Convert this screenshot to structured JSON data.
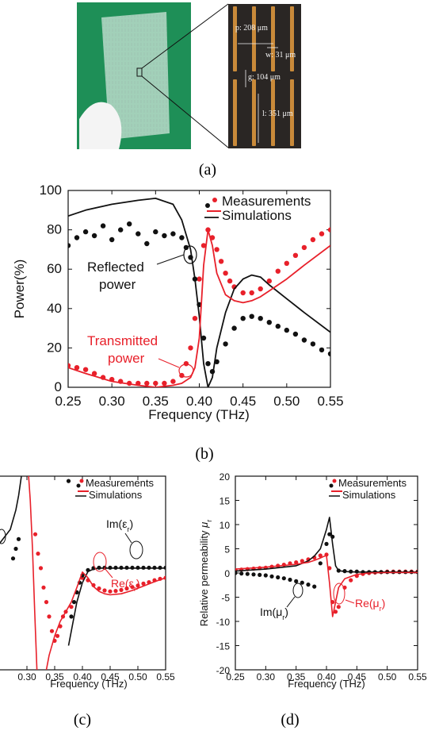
{
  "captions": {
    "a": "(a)",
    "b": "(b)",
    "c": "(c)",
    "d": "(d)"
  },
  "photo": {
    "labels": [
      "p: 208 μm",
      "w: 31 μm",
      "g: 104 μm",
      "l: 351 μm"
    ]
  },
  "colors": {
    "measurement_red": "#e8202a",
    "measurement_black": "#111111",
    "simulation_red": "#e8202a",
    "simulation_black": "#111111",
    "photo_bg": "#1e8f57",
    "strip": "#c98a3a"
  },
  "chart_data": [
    {
      "type": "scatter",
      "panel": "b",
      "xlabel": "Frequency (THz)",
      "ylabel": "Power(%)",
      "xlim": [
        0.25,
        0.55
      ],
      "ylim": [
        0,
        100
      ],
      "xticks": [
        "0.25",
        "0.30",
        "0.35",
        "0.40",
        "0.45",
        "0.50",
        "0.55"
      ],
      "yticks": [
        "0",
        "20",
        "40",
        "60",
        "80",
        "100"
      ],
      "legend": {
        "position": "top-right",
        "entries": [
          "Measurements",
          "Simulations"
        ]
      },
      "annotations": {
        "reflected": [
          "Reflected",
          "power"
        ],
        "transmitted": [
          "Transmitted",
          "power"
        ]
      },
      "series": [
        {
          "kind": "measurement",
          "color": "red",
          "x": [
            0.25,
            0.26,
            0.27,
            0.28,
            0.29,
            0.3,
            0.31,
            0.32,
            0.33,
            0.34,
            0.35,
            0.36,
            0.37,
            0.38,
            0.385,
            0.39,
            0.395,
            0.4,
            0.405,
            0.41,
            0.415,
            0.42,
            0.425,
            0.43,
            0.435,
            0.44,
            0.45,
            0.46,
            0.47,
            0.48,
            0.49,
            0.5,
            0.51,
            0.52,
            0.53,
            0.54,
            0.55
          ],
          "y": [
            11,
            10,
            9,
            7,
            5,
            4,
            3,
            2,
            2,
            2,
            2,
            2,
            3,
            6,
            12,
            20,
            35,
            55,
            72,
            80,
            76,
            70,
            64,
            58,
            54,
            51,
            48,
            48,
            50,
            54,
            59,
            63,
            67,
            71,
            75,
            78,
            80
          ]
        },
        {
          "kind": "measurement",
          "color": "black",
          "x": [
            0.25,
            0.26,
            0.27,
            0.28,
            0.29,
            0.3,
            0.31,
            0.32,
            0.33,
            0.34,
            0.35,
            0.36,
            0.37,
            0.38,
            0.385,
            0.39,
            0.395,
            0.4,
            0.405,
            0.41,
            0.415,
            0.42,
            0.43,
            0.44,
            0.45,
            0.46,
            0.47,
            0.48,
            0.49,
            0.5,
            0.51,
            0.52,
            0.53,
            0.54,
            0.55
          ],
          "y": [
            72,
            76,
            79,
            77,
            82,
            75,
            80,
            83,
            78,
            73,
            79,
            77,
            78,
            76,
            71,
            66,
            55,
            42,
            25,
            12,
            8,
            13,
            22,
            30,
            35,
            36,
            35,
            33,
            31,
            29,
            27,
            24,
            22,
            19,
            17
          ]
        },
        {
          "kind": "simulation",
          "color": "black",
          "x": [
            0.25,
            0.27,
            0.3,
            0.33,
            0.35,
            0.37,
            0.38,
            0.39,
            0.395,
            0.4,
            0.405,
            0.41,
            0.415,
            0.42,
            0.43,
            0.44,
            0.45,
            0.46,
            0.47,
            0.48,
            0.5,
            0.52,
            0.55
          ],
          "y": [
            87,
            90,
            93,
            95,
            96,
            93,
            85,
            70,
            55,
            36,
            12,
            0,
            5,
            20,
            38,
            50,
            55,
            57,
            56,
            52,
            45,
            38,
            28
          ]
        },
        {
          "kind": "simulation",
          "color": "red",
          "x": [
            0.25,
            0.27,
            0.3,
            0.33,
            0.35,
            0.37,
            0.38,
            0.39,
            0.395,
            0.4,
            0.405,
            0.41,
            0.415,
            0.42,
            0.43,
            0.44,
            0.45,
            0.46,
            0.47,
            0.48,
            0.5,
            0.52,
            0.55
          ],
          "y": [
            10,
            7,
            3,
            1,
            0,
            1,
            2,
            5,
            10,
            25,
            62,
            80,
            72,
            58,
            47,
            44,
            43,
            44,
            46,
            49,
            55,
            62,
            72
          ]
        }
      ]
    },
    {
      "type": "scatter",
      "panel": "c",
      "xlabel": "Frequency (THz)",
      "xlim": [
        0.25,
        0.55
      ],
      "ylim": [
        -20,
        20
      ],
      "xticks": [
        "0.30",
        "0.35",
        "0.40",
        "0.45",
        "0.50",
        "0.55"
      ],
      "legend": {
        "position": "top-right",
        "entries": [
          "Measurements",
          "Simulations"
        ]
      },
      "annotations": {
        "im_base": "Im(ε",
        "im_sub": "r",
        "re_base": "Re(ε",
        "re_sub": "r"
      },
      "series": [
        {
          "kind": "measurement",
          "color": "red",
          "x": [
            0.315,
            0.32,
            0.325,
            0.33,
            0.335,
            0.34,
            0.345,
            0.35,
            0.355,
            0.36,
            0.365,
            0.37,
            0.38,
            0.39,
            0.4,
            0.41,
            0.42,
            0.43,
            0.44,
            0.45,
            0.46,
            0.47,
            0.48,
            0.49,
            0.5,
            0.51,
            0.52,
            0.53,
            0.54,
            0.55
          ],
          "y": [
            8,
            4,
            1,
            -3,
            -6,
            -9,
            -12,
            -14,
            -13,
            -11,
            -9,
            -8,
            -7,
            -4,
            -1,
            -1.5,
            -2.5,
            -3.2,
            -3.6,
            -3.8,
            -3.7,
            -3.5,
            -3.2,
            -2.9,
            -2.6,
            -2.2,
            -1.9,
            -1.5,
            -1.2,
            -1
          ]
        },
        {
          "kind": "measurement",
          "color": "black",
          "x": [
            0.275,
            0.28,
            0.285,
            0.375,
            0.38,
            0.385,
            0.39,
            0.395,
            0.4,
            0.41,
            0.42,
            0.43,
            0.44,
            0.45,
            0.46,
            0.47,
            0.48,
            0.49,
            0.5,
            0.51,
            0.52,
            0.53,
            0.54,
            0.55
          ],
          "y": [
            3,
            5,
            7,
            19,
            -9,
            -6,
            -4,
            -2,
            -0.5,
            0.6,
            1,
            1.1,
            1.1,
            1.1,
            1.1,
            1.1,
            1.1,
            1.1,
            1.1,
            1.1,
            1.1,
            1.1,
            1.1,
            1.1
          ]
        },
        {
          "kind": "simulation",
          "color": "black",
          "x": [
            0.25,
            0.27,
            0.275,
            0.28,
            0.285,
            0.29
          ],
          "y": [
            6,
            9,
            11,
            13,
            16,
            20
          ]
        },
        {
          "kind": "simulation",
          "color": "black",
          "x": [
            0.375,
            0.38,
            0.39,
            0.4,
            0.41,
            0.42,
            0.43,
            0.45,
            0.47,
            0.5,
            0.55
          ],
          "y": [
            -15,
            -12,
            -6,
            -2,
            0.3,
            0.8,
            1,
            1,
            1,
            1,
            1
          ]
        },
        {
          "kind": "simulation",
          "color": "red",
          "x": [
            0.303,
            0.306,
            0.31,
            0.314,
            0.318
          ],
          "y": [
            20,
            15,
            5,
            -8,
            -20
          ]
        },
        {
          "kind": "simulation",
          "color": "red",
          "x": [
            0.335,
            0.34,
            0.35,
            0.36,
            0.37,
            0.38,
            0.39,
            0.4,
            0.41,
            0.42,
            0.43,
            0.44,
            0.45,
            0.47,
            0.49,
            0.51,
            0.53,
            0.55
          ],
          "y": [
            -20,
            -17,
            -13,
            -10,
            -8,
            -6,
            -3,
            0.2,
            -1,
            -2.8,
            -3.8,
            -4.3,
            -4.5,
            -4.3,
            -3.6,
            -2.7,
            -1.8,
            -1
          ]
        }
      ]
    },
    {
      "type": "scatter",
      "panel": "d",
      "xlabel": "Frequency (THz)",
      "ylabel_main": "Relative permeability",
      "ylabel_sym": "μ",
      "ylabel_sub": "r",
      "xlim": [
        0.25,
        0.55
      ],
      "ylim": [
        -20,
        20
      ],
      "xticks": [
        "0.25",
        "0.30",
        "0.35",
        "0.40",
        "0.45",
        "0.50",
        "0.55"
      ],
      "yticks": [
        "-20",
        "-15",
        "-10",
        "-5",
        "0",
        "5",
        "10",
        "15",
        "20"
      ],
      "legend": {
        "position": "top-right",
        "entries": [
          "Measurements",
          "Simulations"
        ]
      },
      "annotations": {
        "im_base": "Im(μ",
        "im_sub": "r",
        "re_base": "Re(μ",
        "re_sub": "r"
      },
      "series": [
        {
          "kind": "measurement",
          "color": "red",
          "x": [
            0.25,
            0.26,
            0.27,
            0.28,
            0.29,
            0.3,
            0.31,
            0.32,
            0.33,
            0.34,
            0.35,
            0.36,
            0.37,
            0.38,
            0.39,
            0.4,
            0.405,
            0.41,
            0.415,
            0.42,
            0.43,
            0.44,
            0.45,
            0.46,
            0.47,
            0.48,
            0.49,
            0.5,
            0.51,
            0.52,
            0.53,
            0.54,
            0.55
          ],
          "y": [
            0.6,
            0.7,
            0.8,
            0.9,
            1,
            1.1,
            1.3,
            1.5,
            1.7,
            2,
            2.2,
            2.5,
            2.8,
            3.2,
            3.6,
            3.8,
            1,
            -6,
            -8,
            -7,
            -3,
            -1.5,
            -0.6,
            -0.2,
            0,
            0.1,
            0.2,
            0.3,
            0.3,
            0.3,
            0.3,
            0.3,
            0.3
          ]
        },
        {
          "kind": "measurement",
          "color": "black",
          "x": [
            0.25,
            0.26,
            0.27,
            0.28,
            0.29,
            0.3,
            0.31,
            0.32,
            0.33,
            0.34,
            0.35,
            0.36,
            0.37,
            0.38,
            0.39,
            0.4,
            0.405,
            0.41,
            0.42,
            0.43,
            0.44,
            0.45,
            0.46,
            0.47,
            0.48,
            0.49,
            0.5,
            0.51,
            0.52,
            0.53,
            0.54,
            0.55
          ],
          "y": [
            0,
            -0.1,
            -0.2,
            -0.3,
            -0.4,
            -0.5,
            -0.7,
            -0.9,
            -1.1,
            -1.4,
            -1.7,
            -2,
            -2.4,
            -2.8,
            2,
            6,
            8,
            7.5,
            0.5,
            0.4,
            0.3,
            0.3,
            0.2,
            0.2,
            0.2,
            0.2,
            0.2,
            0.2,
            0.2,
            0.2,
            0.2,
            0.2
          ]
        },
        {
          "kind": "simulation",
          "color": "black",
          "x": [
            0.25,
            0.3,
            0.35,
            0.37,
            0.38,
            0.39,
            0.395,
            0.4,
            0.405,
            0.41,
            0.415,
            0.42,
            0.43,
            0.45,
            0.5,
            0.55
          ],
          "y": [
            0.4,
            0.8,
            1.5,
            2.5,
            3.5,
            5,
            7,
            9,
            11.5,
            6,
            1.5,
            0.5,
            0.3,
            0.2,
            0.2,
            0.2
          ]
        },
        {
          "kind": "simulation",
          "color": "red",
          "x": [
            0.25,
            0.3,
            0.35,
            0.37,
            0.38,
            0.39,
            0.395,
            0.4,
            0.405,
            0.41,
            0.415,
            0.42,
            0.43,
            0.45,
            0.47,
            0.5,
            0.55
          ],
          "y": [
            0.8,
            1.2,
            1.8,
            2.2,
            2.6,
            3.1,
            3.4,
            3.6,
            -2,
            -9,
            -6,
            -3,
            -1.2,
            -0.3,
            0,
            0.1,
            0.1
          ]
        }
      ]
    }
  ]
}
